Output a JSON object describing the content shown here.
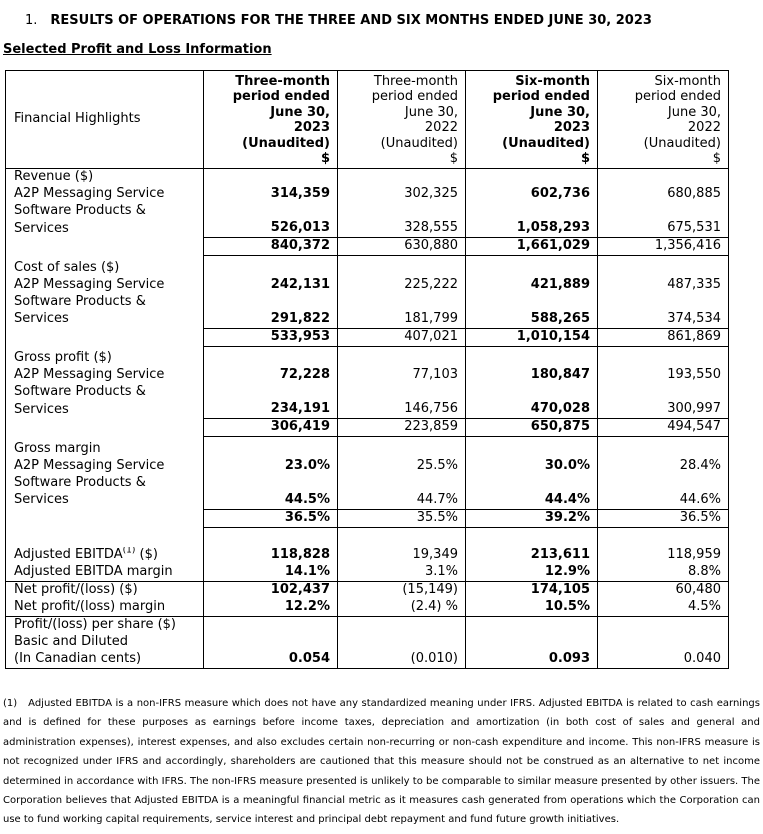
{
  "document": {
    "heading_number": "1.",
    "heading_title": "RESULTS OF OPERATIONS FOR THE THREE AND SIX MONTHS ENDED JUNE 30, 2023",
    "subheading": "Selected Profit and Loss Information"
  },
  "table": {
    "row_header_label": "Financial Highlights",
    "bold_columns": [
      0,
      2
    ],
    "column_headers": [
      {
        "lines": [
          "Three-month",
          "period ended",
          "June 30,",
          "2023",
          "(Unaudited)",
          "$"
        ],
        "bold": true
      },
      {
        "lines": [
          "Three-month",
          "period ended",
          "June 30,",
          "2022",
          "(Unaudited)",
          "$"
        ],
        "bold": false
      },
      {
        "lines": [
          "Six-month",
          "period ended",
          "June 30,",
          "2023",
          "(Unaudited)",
          "$"
        ],
        "bold": true
      },
      {
        "lines": [
          "Six-month",
          "period ended",
          "June 30,",
          "2022",
          "(Unaudited)",
          "$"
        ],
        "bold": false
      }
    ],
    "sections": [
      {
        "name": "revenue",
        "rows": [
          {
            "label": "Revenue ($)"
          },
          {
            "label": "A2P Messaging Service",
            "values": [
              "314,359",
              "302,325",
              "602,736",
              "680,885"
            ]
          },
          {
            "label": "Software Products &"
          },
          {
            "label": "Services",
            "values": [
              "526,013",
              "328,555",
              "1,058,293",
              "675,531"
            ]
          },
          {
            "label": "",
            "values": [
              "840,372",
              "630,880",
              "1,661,029",
              "1,356,416"
            ],
            "total": true
          },
          {
            "spacer": "small"
          }
        ]
      },
      {
        "name": "cost-of-sales",
        "rows": [
          {
            "label": "Cost of sales ($)"
          },
          {
            "label": "A2P Messaging Service",
            "values": [
              "242,131",
              "225,222",
              "421,889",
              "487,335"
            ]
          },
          {
            "label": "Software Products &"
          },
          {
            "label": "Services",
            "values": [
              "291,822",
              "181,799",
              "588,265",
              "374,534"
            ]
          },
          {
            "label": "",
            "values": [
              "533,953",
              "407,021",
              "1,010,154",
              "861,869"
            ],
            "total": true
          },
          {
            "spacer": "small"
          }
        ]
      },
      {
        "name": "gross-profit",
        "rows": [
          {
            "label": "Gross profit ($)"
          },
          {
            "label": "A2P Messaging Service",
            "values": [
              "72,228",
              "77,103",
              "180,847",
              "193,550"
            ]
          },
          {
            "label": "Software Products &"
          },
          {
            "label": "Services",
            "values": [
              "234,191",
              "146,756",
              "470,028",
              "300,997"
            ]
          },
          {
            "label": "",
            "values": [
              "306,419",
              "223,859",
              "650,875",
              "494,547"
            ],
            "total": true
          },
          {
            "spacer": "small"
          }
        ]
      },
      {
        "name": "gross-margin",
        "rows": [
          {
            "label": "Gross margin"
          },
          {
            "label": "A2P Messaging Service",
            "values": [
              "23.0%",
              "25.5%",
              "30.0%",
              "28.4%"
            ]
          },
          {
            "label": "Software Products &"
          },
          {
            "label": "Services",
            "values": [
              "44.5%",
              "44.7%",
              "44.4%",
              "44.6%"
            ]
          },
          {
            "label": "",
            "values": [
              "36.5%",
              "35.5%",
              "39.2%",
              "36.5%"
            ],
            "total": true
          },
          {
            "spacer": "tall"
          }
        ]
      },
      {
        "name": "adjusted-ebitda",
        "rows": [
          {
            "label": "Adjusted EBITDA",
            "sup": "(1)",
            "label_suffix": " ($)",
            "values": [
              "118,828",
              "19,349",
              "213,611",
              "118,959"
            ]
          },
          {
            "label": "Adjusted EBITDA margin",
            "values": [
              "14.1%",
              "3.1%",
              "12.9%",
              "8.8%"
            ],
            "rule_below": true
          }
        ]
      },
      {
        "name": "net-profit",
        "rows": [
          {
            "label": "Net profit/(loss) ($)",
            "values": [
              "102,437",
              "(15,149)",
              "174,105",
              "60,480"
            ]
          },
          {
            "label": "Net profit/(loss) margin",
            "values": [
              "12.2%",
              "(2.4) %",
              "10.5%",
              "4.5%"
            ],
            "rule_below": true
          }
        ]
      },
      {
        "name": "per-share",
        "rows": [
          {
            "label": "Profit/(loss) per share ($)"
          },
          {
            "label": "Basic and Diluted"
          },
          {
            "label": "(In Canadian cents)",
            "values": [
              "0.054",
              "(0.010)",
              "0.093",
              "0.040"
            ],
            "rule_below": true
          }
        ]
      }
    ]
  },
  "footnote": {
    "marker": "(1)",
    "text": "Adjusted EBITDA is a non-IFRS measure which does not have any standardized meaning under IFRS. Adjusted EBITDA is related to cash earnings and is defined for these purposes as earnings before income taxes, depreciation and amortization (in both cost of sales and general and administration expenses), interest expenses, and also excludes certain non-recurring or non-cash expenditure and income. This non-IFRS measure is not recognized under IFRS and accordingly, shareholders are cautioned that this measure should not be construed as an alternative to net income determined in accordance with IFRS. The non-IFRS measure presented is unlikely to be comparable to similar measure presented by other issuers. The Corporation believes that Adjusted EBITDA is a meaningful financial metric as it measures cash generated from operations which the Corporation can use to fund working capital requirements, service interest and principal debt repayment and fund future growth initiatives."
  }
}
